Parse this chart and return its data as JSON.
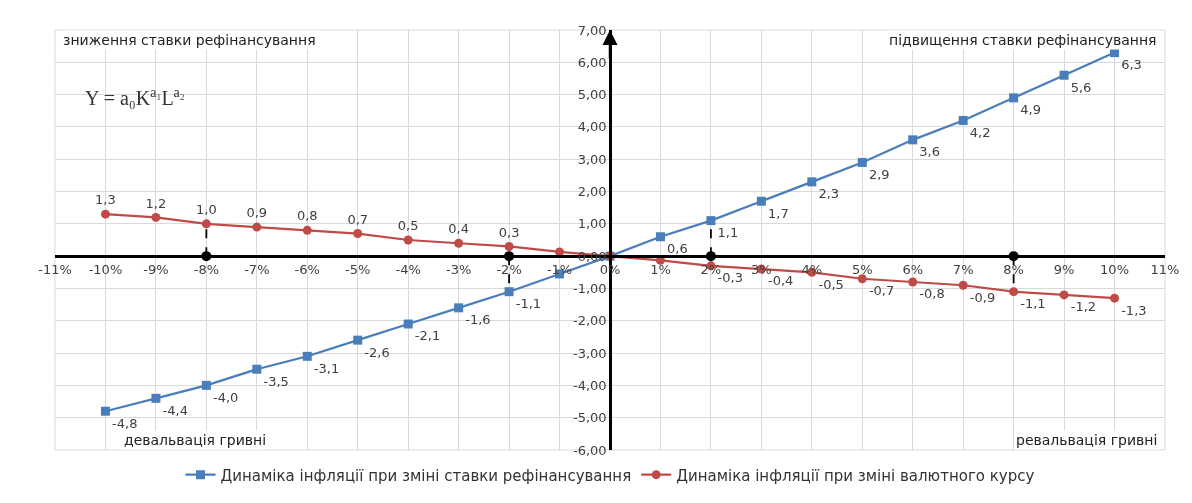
{
  "chart_data": {
    "type": "line",
    "annotations": [
      {
        "text": "зниження ставки рефінансування"
      },
      {
        "text": "підвищення ставки рефінансування"
      },
      {
        "text": "девальвація гривні"
      },
      {
        "text": "ревальвація гривні"
      },
      {
        "text": "Y = a₀K$^{a₁}$L$^{a₂}$"
      }
    ],
    "x": [
      -10,
      -9,
      -8,
      -7,
      -6,
      -5,
      -4,
      -3,
      -2,
      -1,
      0,
      1,
      2,
      3,
      4,
      5,
      6,
      7,
      8,
      9,
      10
    ],
    "series": [
      {
        "name": "Динаміка інфляції при зміні ставки рефінансування",
        "color": "#4a7ebb",
        "marker": "square",
        "values": [
          -4.8,
          -4.4,
          -4.0,
          -3.5,
          -3.1,
          -2.6,
          -2.1,
          -1.6,
          -1.1,
          -0.55,
          0,
          0.6,
          1.1,
          1.7,
          2.3,
          2.9,
          3.6,
          4.2,
          4.9,
          5.6,
          6.3
        ],
        "value_labels": [
          "-4,8",
          "-4,4",
          "-4,0",
          "-3,5",
          "-3,1",
          "-2,6",
          "-2,1",
          "-1,6",
          "-1,1",
          null,
          null,
          "0,6",
          "1,1",
          "1,7",
          "2,3",
          "2,9",
          "3,6",
          "4,2",
          "4,9",
          "5,6",
          "6,3"
        ]
      },
      {
        "name": "Динаміка інфляції при зміні валютного курсу",
        "color": "#be4b48",
        "marker": "circle",
        "values": [
          1.3,
          1.2,
          1.0,
          0.9,
          0.8,
          0.7,
          0.5,
          0.4,
          0.3,
          0.13,
          0,
          -0.13,
          -0.3,
          -0.4,
          -0.5,
          -0.7,
          -0.8,
          -0.9,
          -1.1,
          -1.2,
          -1.3
        ],
        "value_labels": [
          "1,3",
          "1,2",
          "1,0",
          "0,9",
          "0,8",
          "0,7",
          "0,5",
          "0,4",
          "0,3",
          null,
          null,
          null,
          "-0,3",
          "-0,4",
          "-0,5",
          "-0,7",
          "-0,8",
          "-0,9",
          "-1,1",
          "-1,2",
          "-1,3"
        ]
      },
      {
        "type": "scatter",
        "color": "#000000",
        "marker": "circle",
        "x": [
          -8,
          -2,
          2,
          8
        ],
        "values": [
          0,
          0,
          0,
          0
        ]
      },
      {
        "type": "line",
        "color": "#000000",
        "line_style": "dashed",
        "marker": "none",
        "x": [
          -8,
          -8
        ],
        "values": [
          0,
          1.0
        ]
      },
      {
        "type": "line",
        "color": "#000000",
        "line_style": "dashed",
        "marker": "none",
        "x": [
          -2,
          -2
        ],
        "values": [
          0,
          -1.1
        ]
      },
      {
        "type": "line",
        "color": "#000000",
        "line_style": "dashed",
        "marker": "none",
        "x": [
          2,
          2
        ],
        "values": [
          0,
          1.1
        ]
      },
      {
        "type": "line",
        "color": "#000000",
        "line_style": "dashed",
        "marker": "none",
        "x": [
          8,
          8
        ],
        "values": [
          0,
          -1.1
        ]
      }
    ],
    "xlim": [
      -11,
      11
    ],
    "xticks": [
      {
        "value": -11,
        "label": "-11%"
      },
      {
        "value": -10,
        "label": "-10%"
      },
      {
        "value": -9,
        "label": "-9%"
      },
      {
        "value": -8,
        "label": "-8%"
      },
      {
        "value": -7,
        "label": "-7%"
      },
      {
        "value": -6,
        "label": "-6%"
      },
      {
        "value": -5,
        "label": "-5%"
      },
      {
        "value": -4,
        "label": "-4%"
      },
      {
        "value": -3,
        "label": "-3%"
      },
      {
        "value": -2,
        "label": "-2%"
      },
      {
        "value": -1,
        "label": "-1%"
      },
      {
        "value": 0,
        "label": "0%"
      },
      {
        "value": 1,
        "label": "1%"
      },
      {
        "value": 2,
        "label": "2%"
      },
      {
        "value": 3,
        "label": "3%"
      },
      {
        "value": 4,
        "label": "4%"
      },
      {
        "value": 5,
        "label": "5%"
      },
      {
        "value": 6,
        "label": "6%"
      },
      {
        "value": 7,
        "label": "7%"
      },
      {
        "value": 8,
        "label": "8%"
      },
      {
        "value": 9,
        "label": "9%"
      },
      {
        "value": 10,
        "label": "10%"
      },
      {
        "value": 11,
        "label": "11%"
      }
    ],
    "ylim": [
      -6,
      7
    ],
    "yticks": [
      {
        "value": -6,
        "label": "-6,00"
      },
      {
        "value": -5,
        "label": "-5,00"
      },
      {
        "value": -4,
        "label": "-4,00"
      },
      {
        "value": -3,
        "label": "-3,00"
      },
      {
        "value": -2,
        "label": "-2,00"
      },
      {
        "value": -1,
        "label": "-1,00"
      },
      {
        "value": 0,
        "label": "0,00"
      },
      {
        "value": 1,
        "label": "1,00"
      },
      {
        "value": 2,
        "label": "2,00"
      },
      {
        "value": 3,
        "label": "3,00"
      },
      {
        "value": 4,
        "label": "4,00"
      },
      {
        "value": 5,
        "label": "5,00"
      },
      {
        "value": 6,
        "label": "6,00"
      },
      {
        "value": 7,
        "label": "7,00"
      }
    ],
    "grid": true,
    "legend": "bottom",
    "line_style": "solid"
  }
}
